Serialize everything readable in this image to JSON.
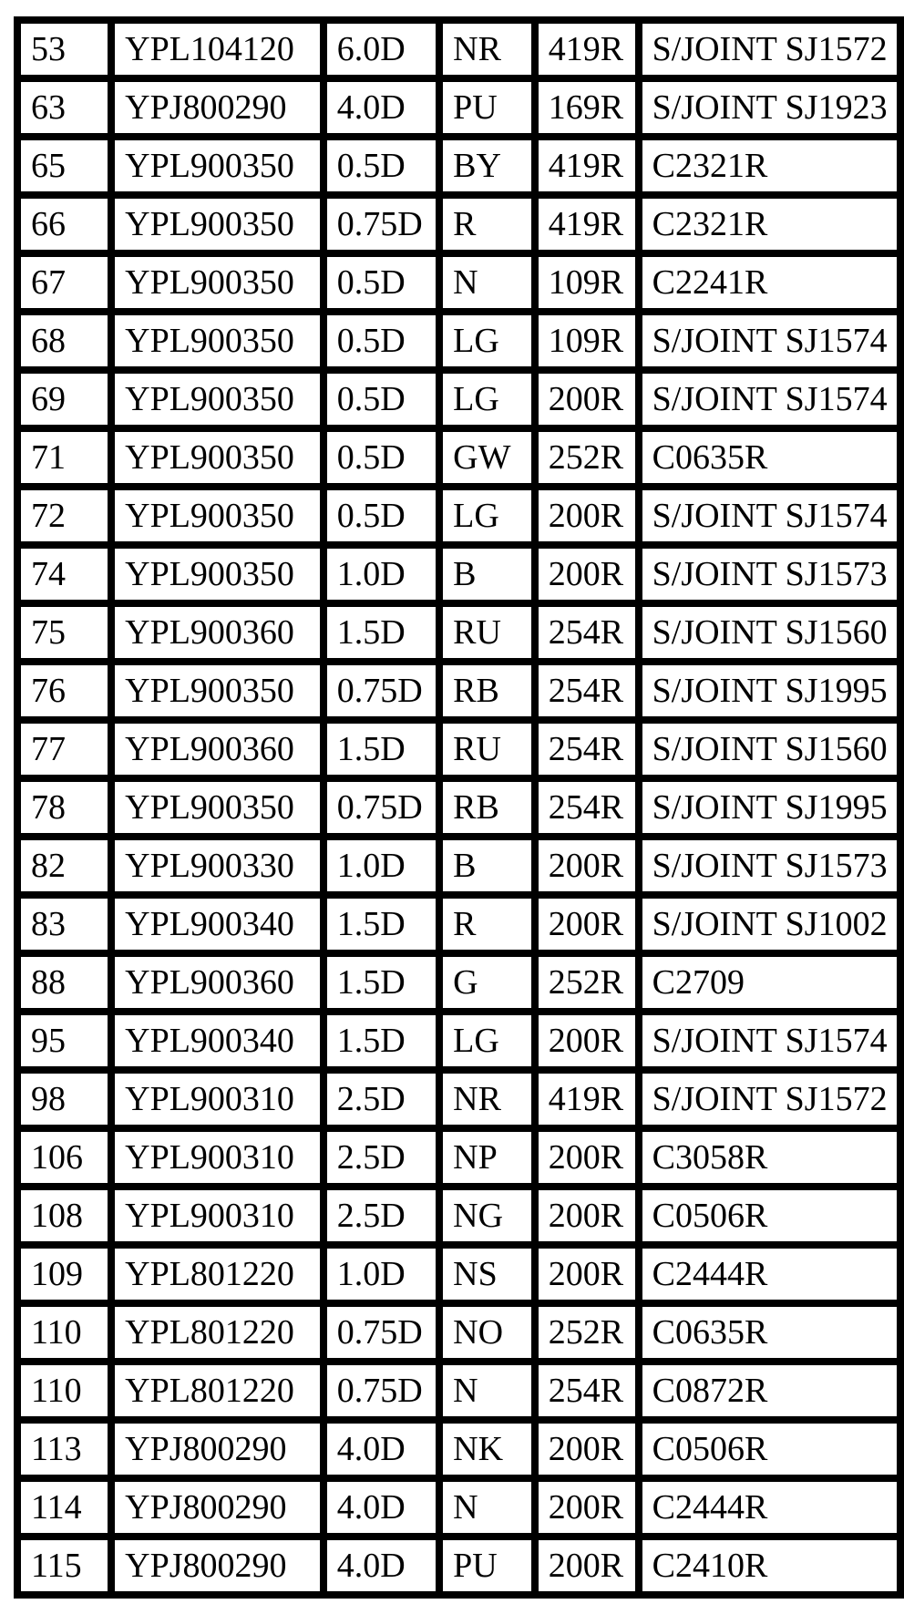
{
  "page": {
    "background": "#ffffff",
    "border_color": "#000000",
    "text_color": "#000000"
  },
  "table": {
    "rows": [
      [
        "53",
        "YPL104120",
        "6.0D",
        "NR",
        "419R",
        "S/JOINT SJ1572"
      ],
      [
        "63",
        "YPJ800290",
        "4.0D",
        "PU",
        "169R",
        "S/JOINT SJ1923"
      ],
      [
        "65",
        "YPL900350",
        "0.5D",
        "BY",
        "419R",
        "C2321R"
      ],
      [
        "66",
        "YPL900350",
        "0.75D",
        "R",
        "419R",
        "C2321R"
      ],
      [
        "67",
        "YPL900350",
        "0.5D",
        "N",
        "109R",
        "C2241R"
      ],
      [
        "68",
        "YPL900350",
        "0.5D",
        "LG",
        "109R",
        "S/JOINT SJ1574"
      ],
      [
        "69",
        "YPL900350",
        "0.5D",
        "LG",
        "200R",
        "S/JOINT SJ1574"
      ],
      [
        "71",
        "YPL900350",
        "0.5D",
        "GW",
        "252R",
        "C0635R"
      ],
      [
        "72",
        "YPL900350",
        "0.5D",
        "LG",
        "200R",
        "S/JOINT SJ1574"
      ],
      [
        "74",
        "YPL900350",
        "1.0D",
        "B",
        "200R",
        "S/JOINT SJ1573"
      ],
      [
        "75",
        "YPL900360",
        "1.5D",
        "RU",
        "254R",
        "S/JOINT SJ1560"
      ],
      [
        "76",
        "YPL900350",
        "0.75D",
        "RB",
        "254R",
        "S/JOINT SJ1995"
      ],
      [
        "77",
        "YPL900360",
        "1.5D",
        "RU",
        "254R",
        "S/JOINT SJ1560"
      ],
      [
        "78",
        "YPL900350",
        "0.75D",
        "RB",
        "254R",
        "S/JOINT SJ1995"
      ],
      [
        "82",
        "YPL900330",
        "1.0D",
        "B",
        "200R",
        "S/JOINT SJ1573"
      ],
      [
        "83",
        "YPL900340",
        "1.5D",
        "R",
        "200R",
        "S/JOINT SJ1002"
      ],
      [
        "88",
        "YPL900360",
        "1.5D",
        "G",
        "252R",
        "C2709"
      ],
      [
        "95",
        "YPL900340",
        "1.5D",
        "LG",
        "200R",
        "S/JOINT SJ1574"
      ],
      [
        "98",
        "YPL900310",
        "2.5D",
        "NR",
        "419R",
        "S/JOINT SJ1572"
      ],
      [
        "106",
        "YPL900310",
        "2.5D",
        "NP",
        "200R",
        "C3058R"
      ],
      [
        "108",
        "YPL900310",
        "2.5D",
        "NG",
        "200R",
        "C0506R"
      ],
      [
        "109",
        "YPL801220",
        "1.0D",
        "NS",
        "200R",
        "C2444R"
      ],
      [
        "110",
        "YPL801220",
        "0.75D",
        "NO",
        "252R",
        "C0635R"
      ],
      [
        "110",
        "YPL801220",
        "0.75D",
        "N",
        "254R",
        "C0872R"
      ],
      [
        "113",
        "YPJ800290",
        "4.0D",
        "NK",
        "200R",
        "C0506R"
      ],
      [
        "114",
        "YPJ800290",
        "4.0D",
        "N",
        "200R",
        "C2444R"
      ],
      [
        "115",
        "YPJ800290",
        "4.0D",
        "PU",
        "200R",
        "C2410R"
      ]
    ]
  }
}
